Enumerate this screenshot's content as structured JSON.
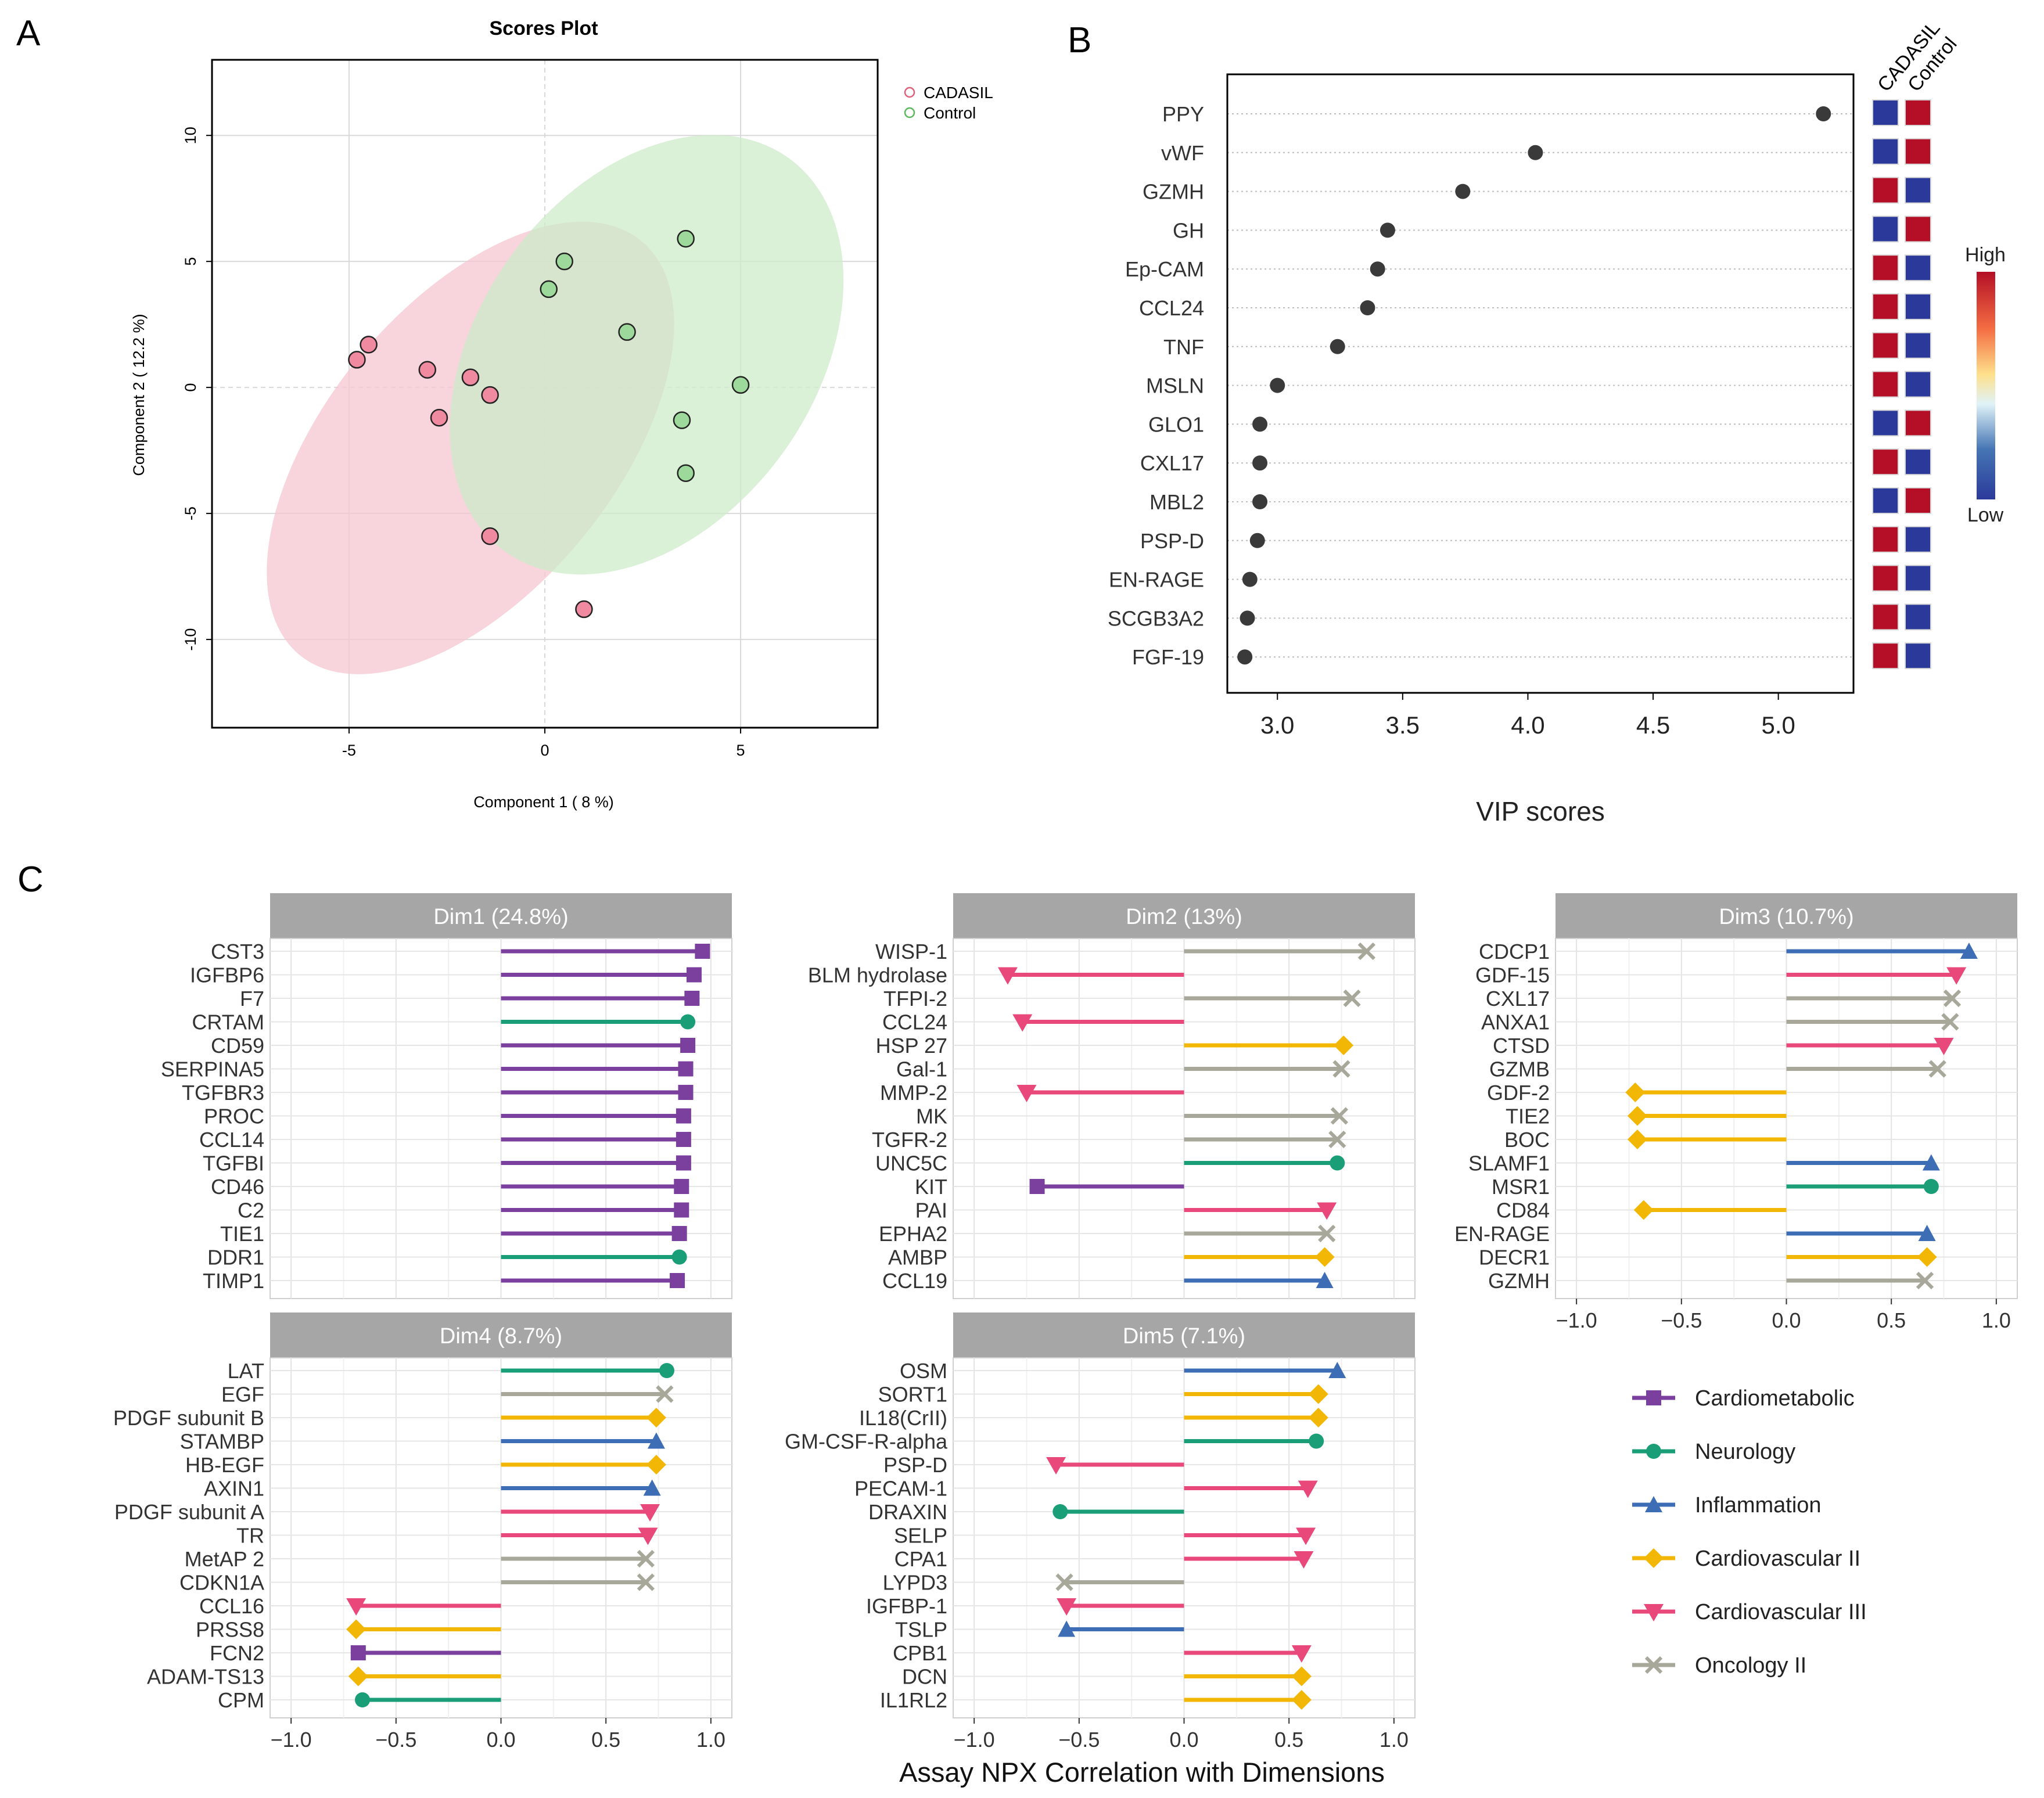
{
  "colors": {
    "Cardiometabolic": "#7B3F9E",
    "Neurology": "#1A9E77",
    "Inflammation": "#3D6DB5",
    "Cardiovascular II": "#F2B705",
    "Cardiovascular III": "#E8487A",
    "Oncology II": "#A8A89A",
    "cadasil_fill": "#F08AA0",
    "cadasil_ellipse": "#F6C6D0",
    "control_fill": "#9DD99A",
    "control_ellipse": "#CDEBC9",
    "heat_high": "#B40F26",
    "heat_low": "#2B3A9A",
    "strip": "#A6A6A6"
  },
  "chart_data": [
    {
      "id": "A",
      "type": "scatter",
      "panel_label": "A",
      "title": "Scores Plot",
      "xlabel": "Component 1 ( 8 %)",
      "ylabel": "Component 2 ( 12.2 %)",
      "xlim": [
        -8.5,
        8.5
      ],
      "ylim": [
        -13.5,
        13
      ],
      "xticks": [
        -5,
        0,
        5
      ],
      "yticks": [
        10,
        5,
        0,
        -5,
        -10
      ],
      "legend_position": "top-right",
      "series": [
        {
          "name": "CADASIL",
          "color_key": "cadasil_fill",
          "points": [
            [
              -4.8,
              1.1
            ],
            [
              -4.5,
              1.7
            ],
            [
              -3,
              0.7
            ],
            [
              -1.9,
              0.4
            ],
            [
              -1.4,
              -0.3
            ],
            [
              -2.7,
              -1.2
            ],
            [
              -1.4,
              -5.9
            ],
            [
              1,
              -8.8
            ]
          ],
          "ellipse": {
            "cx": -1.9,
            "cy": -2.4,
            "rx": 9.3,
            "ry": 4.2,
            "angle_deg": 62
          }
        },
        {
          "name": "Control",
          "color_key": "control_fill",
          "points": [
            [
              0.5,
              5
            ],
            [
              0.1,
              3.9
            ],
            [
              3.6,
              5.9
            ],
            [
              2.1,
              2.2
            ],
            [
              5,
              0.1
            ],
            [
              3.5,
              -1.3
            ],
            [
              3.6,
              -3.4
            ]
          ],
          "ellipse": {
            "cx": 2.6,
            "cy": 1.3,
            "rx": 8.6,
            "ry": 4.8,
            "angle_deg": 65
          }
        }
      ]
    },
    {
      "id": "B",
      "type": "scatter",
      "panel_label": "B",
      "title": "",
      "xlabel": "VIP scores",
      "xlim": [
        2.8,
        5.3
      ],
      "xticks": [
        "3.0",
        "3.5",
        "4.0",
        "4.5",
        "5.0"
      ],
      "heat_columns": [
        "CADASIL",
        "Control"
      ],
      "heat_legend": {
        "high": "High",
        "low": "Low"
      },
      "rows": [
        {
          "label": "PPY",
          "value": 5.18,
          "cadasil": "low",
          "control": "high"
        },
        {
          "label": "vWF",
          "value": 4.03,
          "cadasil": "low",
          "control": "high"
        },
        {
          "label": "GZMH",
          "value": 3.74,
          "cadasil": "high",
          "control": "low"
        },
        {
          "label": "GH",
          "value": 3.44,
          "cadasil": "low",
          "control": "high"
        },
        {
          "label": "Ep-CAM",
          "value": 3.4,
          "cadasil": "high",
          "control": "low"
        },
        {
          "label": "CCL24",
          "value": 3.36,
          "cadasil": "high",
          "control": "low"
        },
        {
          "label": "TNF",
          "value": 3.24,
          "cadasil": "high",
          "control": "low"
        },
        {
          "label": "MSLN",
          "value": 3.0,
          "cadasil": "high",
          "control": "low"
        },
        {
          "label": "GLO1",
          "value": 2.93,
          "cadasil": "low",
          "control": "high"
        },
        {
          "label": "CXL17",
          "value": 2.93,
          "cadasil": "high",
          "control": "low"
        },
        {
          "label": "MBL2",
          "value": 2.93,
          "cadasil": "low",
          "control": "high"
        },
        {
          "label": "PSP-D",
          "value": 2.92,
          "cadasil": "high",
          "control": "low"
        },
        {
          "label": "EN-RAGE",
          "value": 2.89,
          "cadasil": "high",
          "control": "low"
        },
        {
          "label": "SCGB3A2",
          "value": 2.88,
          "cadasil": "high",
          "control": "low"
        },
        {
          "label": "FGF-19",
          "value": 2.87,
          "cadasil": "high",
          "control": "low"
        }
      ]
    },
    {
      "id": "C",
      "type": "bar",
      "panel_label": "C",
      "xlabel": "Assay NPX Correlation with Dimensions",
      "xlim": [
        -1.1,
        1.1
      ],
      "xticks": [
        "−1.0",
        "−0.5",
        "0.0",
        "0.5",
        "1.0"
      ],
      "legend": [
        "Cardiometabolic",
        "Neurology",
        "Inflammation",
        "Cardiovascular II",
        "Cardiovascular III",
        "Oncology II"
      ],
      "facets": [
        {
          "title": "Dim1 (24.8%)",
          "items": [
            {
              "label": "CST3",
              "value": 0.96,
              "panel": "Cardiometabolic"
            },
            {
              "label": "IGFBP6",
              "value": 0.92,
              "panel": "Cardiometabolic"
            },
            {
              "label": "F7",
              "value": 0.91,
              "panel": "Cardiometabolic"
            },
            {
              "label": "CRTAM",
              "value": 0.89,
              "panel": "Neurology"
            },
            {
              "label": "CD59",
              "value": 0.89,
              "panel": "Cardiometabolic"
            },
            {
              "label": "SERPINA5",
              "value": 0.88,
              "panel": "Cardiometabolic"
            },
            {
              "label": "TGFBR3",
              "value": 0.88,
              "panel": "Cardiometabolic"
            },
            {
              "label": "PROC",
              "value": 0.87,
              "panel": "Cardiometabolic"
            },
            {
              "label": "CCL14",
              "value": 0.87,
              "panel": "Cardiometabolic"
            },
            {
              "label": "TGFBI",
              "value": 0.87,
              "panel": "Cardiometabolic"
            },
            {
              "label": "CD46",
              "value": 0.86,
              "panel": "Cardiometabolic"
            },
            {
              "label": "C2",
              "value": 0.86,
              "panel": "Cardiometabolic"
            },
            {
              "label": "TIE1",
              "value": 0.85,
              "panel": "Cardiometabolic"
            },
            {
              "label": "DDR1",
              "value": 0.85,
              "panel": "Neurology"
            },
            {
              "label": "TIMP1",
              "value": 0.84,
              "panel": "Cardiometabolic"
            }
          ]
        },
        {
          "title": "Dim2 (13%)",
          "items": [
            {
              "label": "WISP-1",
              "value": 0.87,
              "panel": "Oncology II"
            },
            {
              "label": "BLM hydrolase",
              "value": -0.84,
              "panel": "Cardiovascular III"
            },
            {
              "label": "TFPI-2",
              "value": 0.8,
              "panel": "Oncology II"
            },
            {
              "label": "CCL24",
              "value": -0.77,
              "panel": "Cardiovascular III"
            },
            {
              "label": "HSP 27",
              "value": 0.76,
              "panel": "Cardiovascular II"
            },
            {
              "label": "Gal-1",
              "value": 0.75,
              "panel": "Oncology II"
            },
            {
              "label": "MMP-2",
              "value": -0.75,
              "panel": "Cardiovascular III"
            },
            {
              "label": "MK",
              "value": 0.74,
              "panel": "Oncology II"
            },
            {
              "label": "TGFR-2",
              "value": 0.73,
              "panel": "Oncology II"
            },
            {
              "label": "UNC5C",
              "value": 0.73,
              "panel": "Neurology"
            },
            {
              "label": "KIT",
              "value": -0.7,
              "panel": "Cardiometabolic"
            },
            {
              "label": "PAI",
              "value": 0.68,
              "panel": "Cardiovascular III"
            },
            {
              "label": "EPHA2",
              "value": 0.68,
              "panel": "Oncology II"
            },
            {
              "label": "AMBP",
              "value": 0.67,
              "panel": "Cardiovascular II"
            },
            {
              "label": "CCL19",
              "value": 0.67,
              "panel": "Inflammation"
            }
          ]
        },
        {
          "title": "Dim3 (10.7%)",
          "items": [
            {
              "label": "CDCP1",
              "value": 0.87,
              "panel": "Inflammation"
            },
            {
              "label": "GDF-15",
              "value": 0.81,
              "panel": "Cardiovascular III"
            },
            {
              "label": "CXL17",
              "value": 0.79,
              "panel": "Oncology II"
            },
            {
              "label": "ANXA1",
              "value": 0.78,
              "panel": "Oncology II"
            },
            {
              "label": "CTSD",
              "value": 0.75,
              "panel": "Cardiovascular III"
            },
            {
              "label": "GZMB",
              "value": 0.72,
              "panel": "Oncology II"
            },
            {
              "label": "GDF-2",
              "value": -0.72,
              "panel": "Cardiovascular II"
            },
            {
              "label": "TIE2",
              "value": -0.71,
              "panel": "Cardiovascular II"
            },
            {
              "label": "BOC",
              "value": -0.71,
              "panel": "Cardiovascular II"
            },
            {
              "label": "SLAMF1",
              "value": 0.69,
              "panel": "Inflammation"
            },
            {
              "label": "MSR1",
              "value": 0.69,
              "panel": "Neurology"
            },
            {
              "label": "CD84",
              "value": -0.68,
              "panel": "Cardiovascular II"
            },
            {
              "label": "EN-RAGE",
              "value": 0.67,
              "panel": "Inflammation"
            },
            {
              "label": "DECR1",
              "value": 0.67,
              "panel": "Cardiovascular II"
            },
            {
              "label": "GZMH",
              "value": 0.66,
              "panel": "Oncology II"
            }
          ]
        },
        {
          "title": "Dim4 (8.7%)",
          "items": [
            {
              "label": "LAT",
              "value": 0.79,
              "panel": "Neurology"
            },
            {
              "label": "EGF",
              "value": 0.78,
              "panel": "Oncology II"
            },
            {
              "label": "PDGF subunit B",
              "value": 0.74,
              "panel": "Cardiovascular II"
            },
            {
              "label": "STAMBP",
              "value": 0.74,
              "panel": "Inflammation"
            },
            {
              "label": "HB-EGF",
              "value": 0.74,
              "panel": "Cardiovascular II"
            },
            {
              "label": "AXIN1",
              "value": 0.72,
              "panel": "Inflammation"
            },
            {
              "label": "PDGF subunit A",
              "value": 0.71,
              "panel": "Cardiovascular III"
            },
            {
              "label": "TR",
              "value": 0.7,
              "panel": "Cardiovascular III"
            },
            {
              "label": "MetAP 2",
              "value": 0.69,
              "panel": "Oncology II"
            },
            {
              "label": "CDKN1A",
              "value": 0.69,
              "panel": "Oncology II"
            },
            {
              "label": "CCL16",
              "value": -0.69,
              "panel": "Cardiovascular III"
            },
            {
              "label": "PRSS8",
              "value": -0.69,
              "panel": "Cardiovascular II"
            },
            {
              "label": "FCN2",
              "value": -0.68,
              "panel": "Cardiometabolic"
            },
            {
              "label": "ADAM-TS13",
              "value": -0.68,
              "panel": "Cardiovascular II"
            },
            {
              "label": "CPM",
              "value": -0.66,
              "panel": "Neurology"
            }
          ]
        },
        {
          "title": "Dim5 (7.1%)",
          "items": [
            {
              "label": "OSM",
              "value": 0.73,
              "panel": "Inflammation"
            },
            {
              "label": "SORT1",
              "value": 0.64,
              "panel": "Cardiovascular II"
            },
            {
              "label": "IL18(CrII)",
              "value": 0.64,
              "panel": "Cardiovascular II"
            },
            {
              "label": "GM-CSF-R-alpha",
              "value": 0.63,
              "panel": "Neurology"
            },
            {
              "label": "PSP-D",
              "value": -0.61,
              "panel": "Cardiovascular III"
            },
            {
              "label": "PECAM-1",
              "value": 0.59,
              "panel": "Cardiovascular III"
            },
            {
              "label": "DRAXIN",
              "value": -0.59,
              "panel": "Neurology"
            },
            {
              "label": "SELP",
              "value": 0.58,
              "panel": "Cardiovascular III"
            },
            {
              "label": "CPA1",
              "value": 0.57,
              "panel": "Cardiovascular III"
            },
            {
              "label": "LYPD3",
              "value": -0.57,
              "panel": "Oncology II"
            },
            {
              "label": "IGFBP-1",
              "value": -0.56,
              "panel": "Cardiovascular III"
            },
            {
              "label": "TSLP",
              "value": -0.56,
              "panel": "Inflammation"
            },
            {
              "label": "CPB1",
              "value": 0.56,
              "panel": "Cardiovascular III"
            },
            {
              "label": "DCN",
              "value": 0.56,
              "panel": "Cardiovascular II"
            },
            {
              "label": "IL1RL2",
              "value": 0.56,
              "panel": "Cardiovascular II"
            }
          ]
        }
      ]
    }
  ]
}
